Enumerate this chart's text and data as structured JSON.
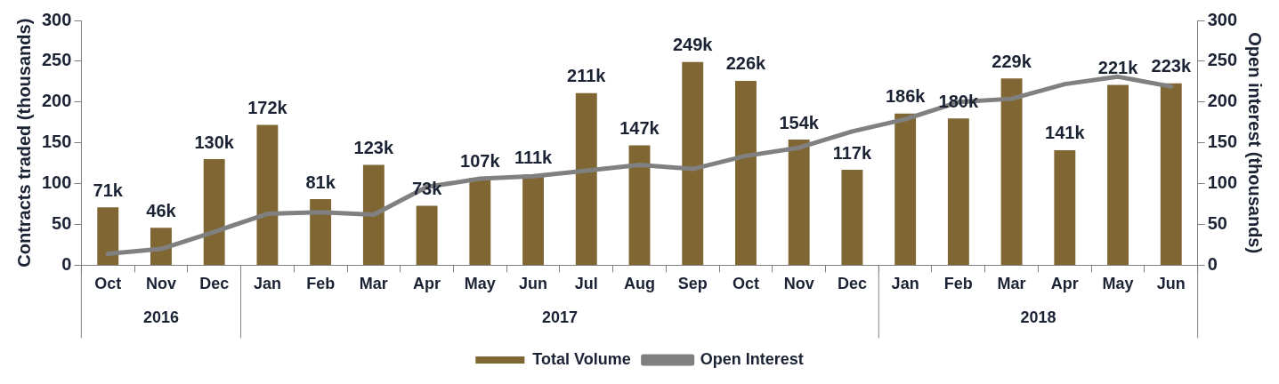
{
  "chart_data": {
    "type": "bar",
    "categories": [
      "Oct",
      "Nov",
      "Dec",
      "Jan",
      "Feb",
      "Mar",
      "Apr",
      "May",
      "Jun",
      "Jul",
      "Aug",
      "Sep",
      "Oct",
      "Nov",
      "Dec",
      "Jan",
      "Feb",
      "Mar",
      "Apr",
      "May",
      "Jun"
    ],
    "ylabel": "Contracts traded (thousands)",
    "y2label": "Open interest (thousands)",
    "ylim": [
      0,
      300
    ],
    "yticks": [
      0,
      50,
      100,
      150,
      200,
      250,
      300
    ],
    "y2lim": [
      0,
      300
    ],
    "y2ticks": [
      0,
      50,
      100,
      150,
      200,
      250,
      300
    ],
    "annotations": [
      "2016",
      "2017",
      "2018"
    ],
    "series": [
      {
        "name": "Total Volume",
        "color": "#7f6633",
        "values": [
          71,
          46,
          130,
          172,
          81,
          123,
          73,
          107,
          111,
          211,
          147,
          249,
          226,
          154,
          117,
          186,
          180,
          229,
          141,
          221,
          223
        ],
        "value_labels": [
          "71k",
          "46k",
          "130k",
          "172k",
          "81k",
          "123k",
          "73k",
          "107k",
          "111k",
          "211k",
          "147k",
          "249k",
          "226k",
          "154k",
          "117k",
          "186k",
          "180k",
          "229k",
          "141k",
          "221k",
          "223k"
        ]
      },
      {
        "name": "Open Interest",
        "type": "line",
        "axis": "y2",
        "color": "#808080",
        "values": [
          14,
          20,
          41,
          63,
          65,
          62,
          96,
          106,
          109,
          116,
          123,
          118,
          134,
          144,
          164,
          179,
          200,
          204,
          222,
          231,
          219
        ]
      }
    ],
    "grid": false,
    "legend": "bottom",
    "marker": "none",
    "line_style": "solid"
  }
}
